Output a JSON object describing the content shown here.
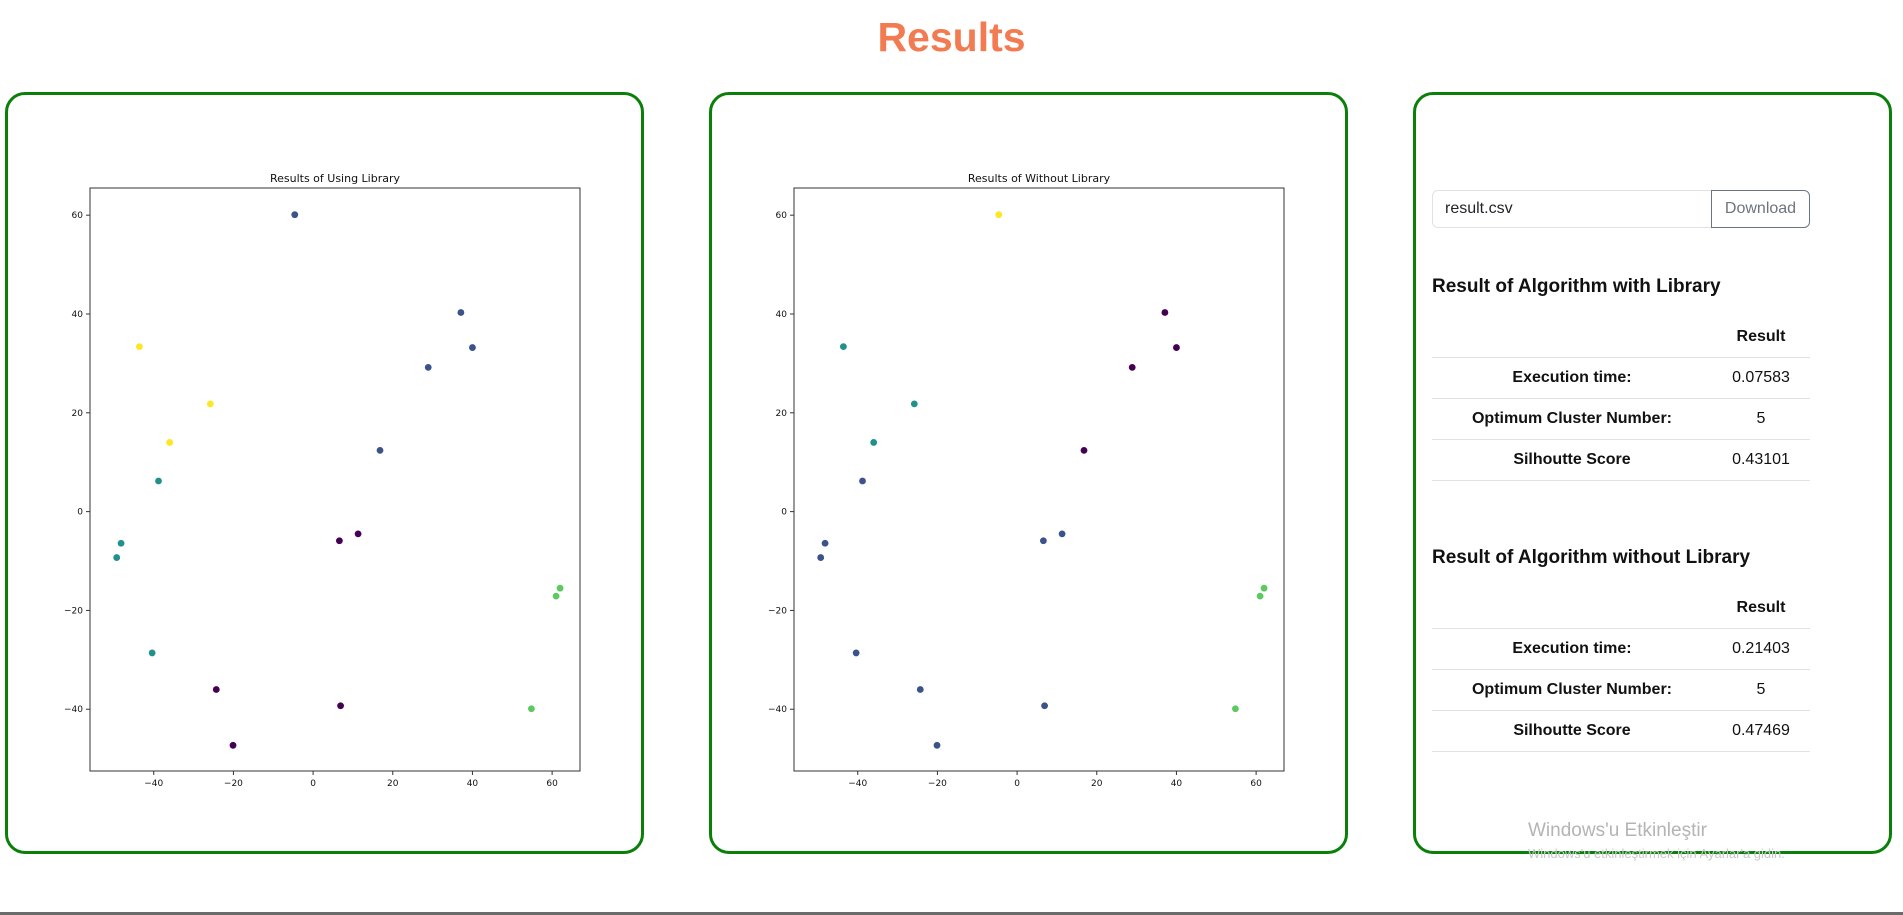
{
  "page": {
    "title": "Results"
  },
  "download": {
    "filename": "result.csv",
    "button_label": "Download"
  },
  "results_with_library": {
    "title": "Result of Algorithm with Library",
    "header": "Result",
    "rows": [
      {
        "label": "Execution time:",
        "value": "0.07583"
      },
      {
        "label": "Optimum Cluster Number:",
        "value": "5"
      },
      {
        "label": "Silhoutte Score",
        "value": "0.43101"
      }
    ]
  },
  "results_without_library": {
    "title": "Result of Algorithm without Library",
    "header": "Result",
    "rows": [
      {
        "label": "Execution time:",
        "value": "0.21403"
      },
      {
        "label": "Optimum Cluster Number:",
        "value": "5"
      },
      {
        "label": "Silhoutte Score",
        "value": "0.47469"
      }
    ]
  },
  "watermark": {
    "title": "Windows'u Etkinleştir",
    "subtitle": "Windows'u etkinleştirmek için Ayarlar'a gidin."
  },
  "colors": {
    "accent_title": "#f27b52",
    "panel_border": "#0a800a",
    "cluster_colors": [
      "#440154",
      "#3b528b",
      "#21918c",
      "#5ec962",
      "#fde725"
    ]
  },
  "chart_data": [
    {
      "type": "scatter",
      "title": "Results of Using Library",
      "xlim": [
        -56,
        67
      ],
      "ylim": [
        -52.5,
        65.5
      ],
      "xticks": [
        -40,
        -20,
        0,
        20,
        40,
        60
      ],
      "yticks": [
        -40,
        -20,
        0,
        20,
        40,
        60
      ],
      "points": [
        {
          "x": -4.6,
          "y": 60.1,
          "cluster": 1
        },
        {
          "x": 37.1,
          "y": 40.3,
          "cluster": 1
        },
        {
          "x": 40.0,
          "y": 33.2,
          "cluster": 1
        },
        {
          "x": 28.9,
          "y": 29.2,
          "cluster": 1
        },
        {
          "x": 16.8,
          "y": 12.4,
          "cluster": 1
        },
        {
          "x": -43.6,
          "y": 33.4,
          "cluster": 4
        },
        {
          "x": -25.8,
          "y": 21.8,
          "cluster": 4
        },
        {
          "x": -36.0,
          "y": 14.0,
          "cluster": 4
        },
        {
          "x": -38.8,
          "y": 6.2,
          "cluster": 2
        },
        {
          "x": -48.2,
          "y": -6.4,
          "cluster": 2
        },
        {
          "x": -49.3,
          "y": -9.3,
          "cluster": 2
        },
        {
          "x": -40.4,
          "y": -28.6,
          "cluster": 2
        },
        {
          "x": 6.6,
          "y": -5.9,
          "cluster": 0
        },
        {
          "x": 11.3,
          "y": -4.5,
          "cluster": 0
        },
        {
          "x": -24.3,
          "y": -36.0,
          "cluster": 0
        },
        {
          "x": 6.9,
          "y": -39.3,
          "cluster": 0
        },
        {
          "x": -20.1,
          "y": -47.3,
          "cluster": 0
        },
        {
          "x": 62.0,
          "y": -15.5,
          "cluster": 3
        },
        {
          "x": 61.0,
          "y": -17.1,
          "cluster": 3
        },
        {
          "x": 54.8,
          "y": -39.9,
          "cluster": 3
        }
      ]
    },
    {
      "type": "scatter",
      "title": "Results of Without Library",
      "xlim": [
        -56,
        67
      ],
      "ylim": [
        -52.5,
        65.5
      ],
      "xticks": [
        -40,
        -20,
        0,
        20,
        40,
        60
      ],
      "yticks": [
        -40,
        -20,
        0,
        20,
        40,
        60
      ],
      "points": [
        {
          "x": -4.6,
          "y": 60.1,
          "cluster": 4
        },
        {
          "x": 37.1,
          "y": 40.3,
          "cluster": 0
        },
        {
          "x": 40.0,
          "y": 33.2,
          "cluster": 0
        },
        {
          "x": 28.9,
          "y": 29.2,
          "cluster": 0
        },
        {
          "x": 16.8,
          "y": 12.4,
          "cluster": 0
        },
        {
          "x": -43.6,
          "y": 33.4,
          "cluster": 2
        },
        {
          "x": -25.8,
          "y": 21.8,
          "cluster": 2
        },
        {
          "x": -36.0,
          "y": 14.0,
          "cluster": 2
        },
        {
          "x": -38.8,
          "y": 6.2,
          "cluster": 1
        },
        {
          "x": -48.2,
          "y": -6.4,
          "cluster": 1
        },
        {
          "x": -49.3,
          "y": -9.3,
          "cluster": 1
        },
        {
          "x": -40.4,
          "y": -28.6,
          "cluster": 1
        },
        {
          "x": 6.6,
          "y": -5.9,
          "cluster": 1
        },
        {
          "x": 11.3,
          "y": -4.5,
          "cluster": 1
        },
        {
          "x": -24.3,
          "y": -36.0,
          "cluster": 1
        },
        {
          "x": 6.9,
          "y": -39.3,
          "cluster": 1
        },
        {
          "x": -20.1,
          "y": -47.3,
          "cluster": 1
        },
        {
          "x": 62.0,
          "y": -15.5,
          "cluster": 3
        },
        {
          "x": 61.0,
          "y": -17.1,
          "cluster": 3
        },
        {
          "x": 54.8,
          "y": -39.9,
          "cluster": 3
        }
      ]
    }
  ]
}
